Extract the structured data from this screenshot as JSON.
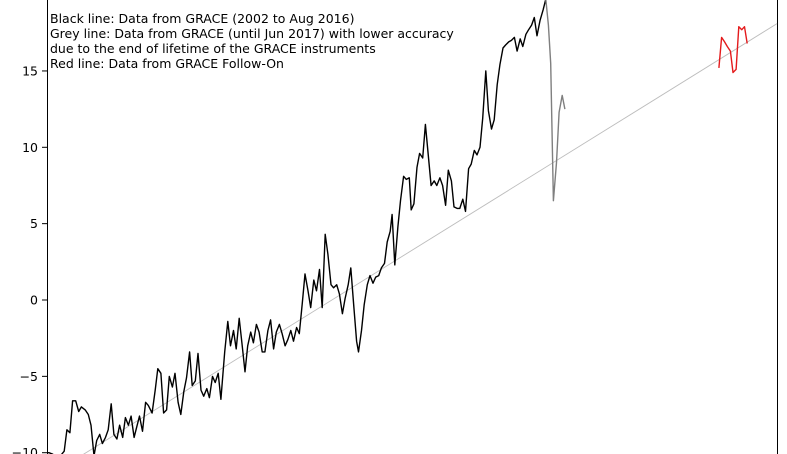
{
  "chart_data": {
    "type": "line",
    "title": "",
    "xlabel": "",
    "ylabel": "",
    "ylim": [
      -10,
      19.7
    ],
    "yticks": [
      -10,
      -5,
      0,
      5,
      10,
      15
    ],
    "ytick_labels": [
      "−10",
      "−5",
      "0",
      "5",
      "10",
      "15"
    ],
    "grid": false,
    "legend": "none",
    "annotations": [
      "Black line: Data from GRACE (2002 to Aug 2016)",
      "Grey line: Data from GRACE (until Jun 2017) with lower accuracy",
      "due to the end of lifetime of the GRACE instruments",
      "Red line: Data from GRACE Follow-On"
    ],
    "x_range": [
      2002.3,
      2021.4
    ],
    "series": [
      {
        "color": "#000000",
        "points": [
          [
            2002.3,
            -10.0
          ],
          [
            2002.35,
            -10.0
          ],
          [
            2002.45,
            -10.1
          ],
          [
            2002.55,
            -10.3
          ],
          [
            2002.65,
            -10.2
          ],
          [
            2002.75,
            -9.9
          ],
          [
            2002.82,
            -8.5
          ],
          [
            2002.9,
            -8.7
          ],
          [
            2002.97,
            -6.6
          ],
          [
            2003.05,
            -6.6
          ],
          [
            2003.13,
            -7.3
          ],
          [
            2003.2,
            -7.0
          ],
          [
            2003.3,
            -7.2
          ],
          [
            2003.38,
            -7.5
          ],
          [
            2003.45,
            -8.2
          ],
          [
            2003.53,
            -10.2
          ],
          [
            2003.6,
            -9.2
          ],
          [
            2003.68,
            -8.8
          ],
          [
            2003.75,
            -9.4
          ],
          [
            2003.83,
            -9.0
          ],
          [
            2003.9,
            -8.5
          ],
          [
            2003.98,
            -6.8
          ],
          [
            2004.05,
            -8.8
          ],
          [
            2004.13,
            -9.1
          ],
          [
            2004.2,
            -8.2
          ],
          [
            2004.28,
            -9.0
          ],
          [
            2004.35,
            -7.7
          ],
          [
            2004.43,
            -8.2
          ],
          [
            2004.5,
            -7.6
          ],
          [
            2004.58,
            -9.0
          ],
          [
            2004.65,
            -8.3
          ],
          [
            2004.72,
            -7.6
          ],
          [
            2004.8,
            -8.6
          ],
          [
            2004.88,
            -6.7
          ],
          [
            2004.95,
            -6.9
          ],
          [
            2005.05,
            -7.4
          ],
          [
            2005.13,
            -5.9
          ],
          [
            2005.2,
            -4.5
          ],
          [
            2005.28,
            -4.8
          ],
          [
            2005.35,
            -7.4
          ],
          [
            2005.43,
            -7.2
          ],
          [
            2005.5,
            -5.0
          ],
          [
            2005.58,
            -5.7
          ],
          [
            2005.65,
            -4.8
          ],
          [
            2005.73,
            -6.7
          ],
          [
            2005.8,
            -7.5
          ],
          [
            2005.88,
            -6.0
          ],
          [
            2005.95,
            -5.1
          ],
          [
            2006.03,
            -3.4
          ],
          [
            2006.1,
            -5.6
          ],
          [
            2006.18,
            -5.3
          ],
          [
            2006.25,
            -3.5
          ],
          [
            2006.33,
            -5.9
          ],
          [
            2006.4,
            -6.3
          ],
          [
            2006.48,
            -5.8
          ],
          [
            2006.55,
            -6.4
          ],
          [
            2006.63,
            -5.0
          ],
          [
            2006.7,
            -5.4
          ],
          [
            2006.78,
            -4.8
          ],
          [
            2006.85,
            -6.5
          ],
          [
            2006.95,
            -3.4
          ],
          [
            2007.03,
            -1.4
          ],
          [
            2007.1,
            -3.0
          ],
          [
            2007.18,
            -2.0
          ],
          [
            2007.25,
            -3.2
          ],
          [
            2007.33,
            -1.2
          ],
          [
            2007.4,
            -2.8
          ],
          [
            2007.48,
            -4.7
          ],
          [
            2007.55,
            -3.0
          ],
          [
            2007.63,
            -2.1
          ],
          [
            2007.7,
            -2.8
          ],
          [
            2007.78,
            -1.6
          ],
          [
            2007.85,
            -2.1
          ],
          [
            2007.93,
            -3.4
          ],
          [
            2008.0,
            -3.4
          ],
          [
            2008.08,
            -2.0
          ],
          [
            2008.15,
            -1.3
          ],
          [
            2008.23,
            -3.2
          ],
          [
            2008.3,
            -2.1
          ],
          [
            2008.38,
            -1.6
          ],
          [
            2008.45,
            -2.2
          ],
          [
            2008.53,
            -3.0
          ],
          [
            2008.6,
            -2.6
          ],
          [
            2008.68,
            -2.0
          ],
          [
            2008.75,
            -2.7
          ],
          [
            2008.83,
            -1.8
          ],
          [
            2008.9,
            -2.2
          ],
          [
            2008.98,
            -0.2
          ],
          [
            2009.05,
            1.7
          ],
          [
            2009.13,
            0.6
          ],
          [
            2009.2,
            -0.5
          ],
          [
            2009.28,
            1.3
          ],
          [
            2009.35,
            0.6
          ],
          [
            2009.43,
            2.0
          ],
          [
            2009.5,
            -0.5
          ],
          [
            2009.58,
            4.3
          ],
          [
            2009.65,
            3.0
          ],
          [
            2009.73,
            1.0
          ],
          [
            2009.8,
            0.8
          ],
          [
            2009.88,
            1.0
          ],
          [
            2009.95,
            0.4
          ],
          [
            2010.03,
            -0.9
          ],
          [
            2010.1,
            0.1
          ],
          [
            2010.18,
            1.0
          ],
          [
            2010.25,
            2.1
          ],
          [
            2010.33,
            -0.5
          ],
          [
            2010.4,
            -2.7
          ],
          [
            2010.45,
            -3.4
          ],
          [
            2010.53,
            -2.0
          ],
          [
            2010.6,
            -0.3
          ],
          [
            2010.68,
            1.0
          ],
          [
            2010.75,
            1.6
          ],
          [
            2010.83,
            1.1
          ],
          [
            2010.9,
            1.5
          ],
          [
            2010.98,
            1.6
          ],
          [
            2011.05,
            2.1
          ],
          [
            2011.13,
            2.4
          ],
          [
            2011.2,
            3.8
          ],
          [
            2011.28,
            4.5
          ],
          [
            2011.33,
            5.6
          ],
          [
            2011.4,
            2.3
          ],
          [
            2011.48,
            4.8
          ],
          [
            2011.55,
            6.5
          ],
          [
            2011.63,
            8.1
          ],
          [
            2011.7,
            7.9
          ],
          [
            2011.78,
            8.0
          ],
          [
            2011.83,
            5.9
          ],
          [
            2011.9,
            6.3
          ],
          [
            2011.98,
            8.7
          ],
          [
            2012.05,
            9.6
          ],
          [
            2012.13,
            9.3
          ],
          [
            2012.2,
            11.5
          ],
          [
            2012.28,
            9.4
          ],
          [
            2012.35,
            7.5
          ],
          [
            2012.43,
            7.8
          ],
          [
            2012.5,
            7.5
          ],
          [
            2012.58,
            8.0
          ],
          [
            2012.65,
            7.5
          ],
          [
            2012.73,
            6.2
          ],
          [
            2012.8,
            8.5
          ],
          [
            2012.88,
            7.8
          ],
          [
            2012.95,
            6.1
          ],
          [
            2013.03,
            6.0
          ],
          [
            2013.1,
            6.0
          ],
          [
            2013.18,
            6.6
          ],
          [
            2013.25,
            5.8
          ],
          [
            2013.33,
            8.6
          ],
          [
            2013.4,
            8.9
          ],
          [
            2013.48,
            9.8
          ],
          [
            2013.55,
            9.5
          ],
          [
            2013.63,
            10.0
          ],
          [
            2013.7,
            11.9
          ],
          [
            2013.78,
            15.0
          ],
          [
            2013.85,
            12.4
          ],
          [
            2013.93,
            11.2
          ],
          [
            2014.0,
            11.8
          ],
          [
            2014.08,
            14.1
          ],
          [
            2014.15,
            15.4
          ],
          [
            2014.23,
            16.5
          ],
          [
            2014.3,
            16.7
          ],
          [
            2014.38,
            16.9
          ],
          [
            2014.45,
            17.0
          ],
          [
            2014.53,
            17.2
          ],
          [
            2014.6,
            16.3
          ],
          [
            2014.68,
            17.1
          ],
          [
            2014.75,
            16.6
          ],
          [
            2014.83,
            17.4
          ],
          [
            2014.9,
            17.7
          ],
          [
            2014.98,
            18.0
          ],
          [
            2015.05,
            18.5
          ],
          [
            2015.12,
            17.3
          ],
          [
            2015.2,
            18.3
          ],
          [
            2015.28,
            19.0
          ],
          [
            2015.35,
            19.7
          ]
        ]
      },
      {
        "color": "#7f7f7f",
        "points": [
          [
            2015.35,
            19.7
          ],
          [
            2015.42,
            18.0
          ],
          [
            2015.48,
            15.5
          ],
          [
            2015.55,
            6.5
          ],
          [
            2015.63,
            9.0
          ],
          [
            2015.7,
            12.3
          ],
          [
            2015.78,
            13.4
          ],
          [
            2015.85,
            12.5
          ]
        ]
      },
      {
        "color": "#e41a1c",
        "points": [
          [
            2019.88,
            15.2
          ],
          [
            2019.95,
            17.2
          ],
          [
            2020.03,
            16.9
          ],
          [
            2020.1,
            16.6
          ],
          [
            2020.18,
            16.3
          ],
          [
            2020.25,
            14.9
          ],
          [
            2020.33,
            15.1
          ],
          [
            2020.4,
            17.9
          ],
          [
            2020.48,
            17.7
          ],
          [
            2020.55,
            17.9
          ],
          [
            2020.62,
            16.8
          ]
        ]
      },
      {
        "color": "#bdbdbd",
        "points": [
          [
            2003.0,
            -10.5
          ],
          [
            2021.4,
            18.1
          ]
        ]
      }
    ]
  }
}
